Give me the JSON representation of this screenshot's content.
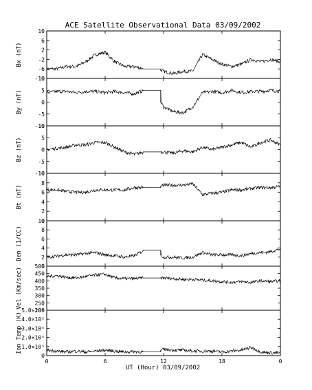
{
  "title": "ACE Satellite Observational Data   03/09/2002",
  "xlabel": "UT (Hour)  03/09/2002",
  "x_ticks": [
    "0",
    "6",
    "12",
    "18",
    "0"
  ],
  "chart_data": [
    {
      "type": "line",
      "ylabel": "Bx (nT)",
      "ylim": [
        -10,
        10
      ],
      "y_ticks": [
        "10",
        "6",
        "2",
        "-2",
        "-6",
        "-10"
      ],
      "y_tick_values": [
        10,
        6,
        2,
        -2,
        -6,
        -10
      ],
      "x_hours": [
        0,
        1,
        2,
        3,
        4,
        5,
        6,
        7,
        8,
        9,
        10,
        11,
        12,
        13,
        14,
        15,
        16,
        17,
        18,
        19,
        20,
        21,
        22,
        23,
        24
      ],
      "values": [
        -6,
        -6,
        -5,
        -5,
        -3,
        0,
        1,
        -3,
        -5,
        -5,
        -6,
        -6,
        -7,
        -8,
        -7,
        -7,
        0,
        -2,
        -4,
        -5,
        -4,
        -2,
        -3,
        -2,
        -3
      ],
      "gap_hours": [
        9.9,
        11.7
      ],
      "gap_value": -6
    },
    {
      "type": "line",
      "ylabel": "By (nT)",
      "ylim": [
        -10,
        10
      ],
      "y_ticks": [
        "10",
        "5",
        "0",
        "-5",
        "-10"
      ],
      "y_tick_values": [
        10,
        5,
        0,
        -5,
        -10
      ],
      "x_hours": [
        0,
        1,
        2,
        3,
        4,
        5,
        6,
        7,
        8,
        9,
        10,
        11,
        12,
        13,
        14,
        15,
        16,
        17,
        18,
        19,
        20,
        21,
        22,
        23,
        24
      ],
      "values": [
        4,
        4.5,
        4.5,
        4,
        4.5,
        4.5,
        4,
        4.5,
        4,
        3.5,
        5,
        5,
        -2,
        -4,
        -4.5,
        -2,
        4,
        4.5,
        4,
        5,
        4,
        4.5,
        4.5,
        5,
        4.5
      ],
      "gap_hours": [
        9.9,
        11.7
      ],
      "gap_value": 5
    },
    {
      "type": "line",
      "ylabel": "Bz (nT)",
      "ylim": [
        -10,
        10
      ],
      "y_ticks": [
        "10",
        "5",
        "0",
        "-5",
        "-10"
      ],
      "y_tick_values": [
        10,
        5,
        0,
        -5,
        -10
      ],
      "x_hours": [
        0,
        1,
        2,
        3,
        4,
        5,
        6,
        7,
        8,
        9,
        10,
        11,
        12,
        13,
        14,
        15,
        16,
        17,
        18,
        19,
        20,
        21,
        22,
        23,
        24
      ],
      "values": [
        0,
        0.5,
        1,
        2,
        2,
        3,
        3,
        1,
        -1,
        -2,
        -1,
        -1,
        -1,
        -1.5,
        -0.5,
        -1,
        1,
        0,
        1,
        2,
        3,
        1,
        3,
        4,
        2
      ],
      "gap_hours": [
        9.9,
        11.7
      ],
      "gap_value": -1
    },
    {
      "type": "line",
      "ylabel": "Bt (nT)",
      "ylim": [
        0,
        10
      ],
      "y_ticks": [
        "10",
        "8",
        "6",
        "4",
        "2",
        "0"
      ],
      "y_tick_values": [
        10,
        8,
        6,
        4,
        2,
        0
      ],
      "x_hours": [
        0,
        1,
        2,
        3,
        4,
        5,
        6,
        7,
        8,
        9,
        10,
        11,
        12,
        13,
        14,
        15,
        16,
        17,
        18,
        19,
        20,
        21,
        22,
        23,
        24
      ],
      "values": [
        6.5,
        6.5,
        6.2,
        6,
        6,
        6.5,
        6.5,
        6.5,
        6.5,
        7,
        7,
        7,
        7.5,
        7.5,
        7.5,
        7.8,
        5.5,
        5.8,
        6,
        6.5,
        6.5,
        6.8,
        7,
        7,
        7.2
      ],
      "gap_hours": [
        9.9,
        11.7
      ],
      "gap_value": 7
    },
    {
      "type": "line",
      "ylabel": "Den (1/CC)",
      "ylim": [
        0,
        10
      ],
      "y_ticks": [
        "10",
        "8",
        "6",
        "4",
        "2",
        "0"
      ],
      "y_tick_values": [
        10,
        8,
        6,
        4,
        2,
        0
      ],
      "x_hours": [
        0,
        1,
        2,
        3,
        4,
        5,
        6,
        7,
        8,
        9,
        10,
        11,
        12,
        13,
        14,
        15,
        16,
        17,
        18,
        19,
        20,
        21,
        22,
        23,
        24
      ],
      "values": [
        2,
        2.2,
        2.5,
        2.5,
        2.8,
        3,
        2.5,
        2.3,
        2,
        2.3,
        3.5,
        3.5,
        2,
        2,
        1.8,
        2,
        3,
        2.5,
        2.5,
        2.5,
        2.3,
        2.8,
        3,
        3.2,
        3.8
      ],
      "gap_hours": [
        9.9,
        11.7
      ],
      "gap_value": 3.5
    },
    {
      "type": "line",
      "ylabel": "Vel (Km/sec)",
      "ylim": [
        200,
        500
      ],
      "y_ticks": [
        "500",
        "450",
        "400",
        "350",
        "300",
        "250",
        "200"
      ],
      "y_tick_values": [
        500,
        450,
        400,
        350,
        300,
        250,
        200
      ],
      "x_hours": [
        0,
        1,
        2,
        3,
        4,
        5,
        6,
        7,
        8,
        9,
        10,
        11,
        12,
        13,
        14,
        15,
        16,
        17,
        18,
        19,
        20,
        21,
        22,
        23,
        24
      ],
      "values": [
        430,
        435,
        425,
        420,
        430,
        440,
        445,
        420,
        415,
        415,
        420,
        420,
        420,
        415,
        410,
        410,
        405,
        400,
        395,
        390,
        395,
        390,
        400,
        395,
        400
      ],
      "gap_hours": [
        9.9,
        11.7
      ],
      "gap_value": 420
    },
    {
      "type": "line",
      "ylabel": "Ion Temp (K)",
      "ylim": [
        0,
        500000
      ],
      "y_ticks": [
        "5.0×10⁵",
        "4.0×10⁵",
        "3.0×10⁵",
        "2.0×10⁵",
        "1.0×10⁵",
        "0"
      ],
      "y_tick_values": [
        500000,
        400000,
        300000,
        200000,
        100000,
        0
      ],
      "x_hours": [
        0,
        1,
        2,
        3,
        4,
        5,
        6,
        7,
        8,
        9,
        10,
        11,
        12,
        13,
        14,
        15,
        16,
        17,
        18,
        19,
        20,
        21,
        22,
        23,
        24
      ],
      "values": [
        60000,
        50000,
        40000,
        50000,
        40000,
        50000,
        60000,
        50000,
        40000,
        45000,
        40000,
        40000,
        70000,
        60000,
        60000,
        50000,
        50000,
        50000,
        40000,
        50000,
        60000,
        90000,
        40000,
        30000,
        30000
      ],
      "gap_hours": [
        9.9,
        11.7
      ],
      "gap_value": 40000
    }
  ]
}
